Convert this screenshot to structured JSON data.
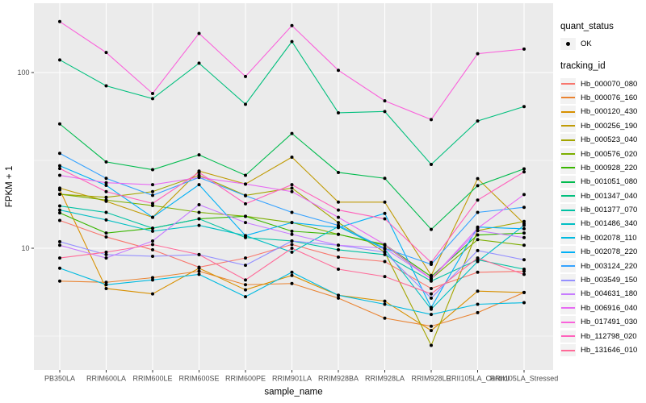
{
  "figure": {
    "panel": {
      "bg": "#EBEBEB",
      "grid_color": "#FFFFFF",
      "tick_color": "#333333",
      "tick_label_color": "#4D4D4D",
      "point_color": "#000000",
      "legend_key_bg": "#F2F2F2"
    },
    "legend": {
      "quant_status_title": "quant_status",
      "ok_label": "OK",
      "tracking_id_title": "tracking_id"
    }
  },
  "chart_data": {
    "type": "line",
    "title": "",
    "xlabel": "sample_name",
    "ylabel": "FPKM + 1",
    "y_scale": "log10",
    "ylim": [
      2,
      250
    ],
    "y_major_ticks": [
      100,
      10
    ],
    "y_tick_labels": [
      "100",
      "10"
    ],
    "y_minor_gridlines": [
      31.62,
      3.162
    ],
    "grid": true,
    "legend_position": "right",
    "point_marker": "black-point",
    "x": [
      "PB350LA",
      "RRIM600LA",
      "RRIM600LE",
      "RRIM600SE",
      "RRIM600PE",
      "RRIM901LA",
      "RRIM928BA",
      "RRIM928LA",
      "RRIM928LE",
      "RRII105LA_Control",
      "RRII105LA_Stressed"
    ],
    "quant_status": [
      "OK"
    ],
    "series": [
      {
        "name": "Hb_000070_080",
        "color": "#F8766D",
        "values": [
          14.4,
          11.6,
          9.8,
          7.8,
          8.8,
          10.5,
          8.9,
          8.4,
          5.9,
          7.3,
          7.4
        ]
      },
      {
        "name": "Hb_000076_160",
        "color": "#EA8331",
        "values": [
          6.5,
          6.4,
          6.8,
          7.4,
          6.2,
          6.3,
          5.2,
          4.0,
          3.6,
          4.3,
          5.6
        ]
      },
      {
        "name": "Hb_000120_430",
        "color": "#D89000",
        "values": [
          21.5,
          5.9,
          5.5,
          7.7,
          5.8,
          7.0,
          5.4,
          5.0,
          3.4,
          5.7,
          5.6
        ]
      },
      {
        "name": "Hb_000256_190",
        "color": "#C09B06",
        "values": [
          22.0,
          18.5,
          15.0,
          27.5,
          23.2,
          33.0,
          18.3,
          18.3,
          7.0,
          24.9,
          13.8
        ]
      },
      {
        "name": "Hb_000523_040",
        "color": "#A3A500",
        "values": [
          20.3,
          19.5,
          21.0,
          26.0,
          20.0,
          22.0,
          14.0,
          9.5,
          2.8,
          12.6,
          14.2
        ]
      },
      {
        "name": "Hb_000576_020",
        "color": "#7CAE00",
        "values": [
          20.3,
          18.8,
          17.5,
          16.0,
          15.2,
          14.0,
          12.0,
          10.4,
          6.7,
          11.2,
          10.4
        ]
      },
      {
        "name": "Hb_000928_220",
        "color": "#39B600",
        "values": [
          15.9,
          12.2,
          13.0,
          14.7,
          15.2,
          12.5,
          12.0,
          10.5,
          6.9,
          11.9,
          12.2
        ]
      },
      {
        "name": "Hb_001051_080",
        "color": "#00BB4E",
        "values": [
          51,
          31,
          28,
          34,
          26,
          45,
          27,
          25,
          12.8,
          22.7,
          28.3
        ]
      },
      {
        "name": "Hb_001347_040",
        "color": "#00BF7D",
        "values": [
          118,
          84,
          71,
          113,
          66,
          150,
          59,
          60,
          30,
          53,
          64
        ]
      },
      {
        "name": "Hb_001377_070",
        "color": "#00C1A3",
        "values": [
          17.4,
          16.0,
          13.0,
          14.7,
          11.5,
          11.0,
          9.8,
          9.2,
          6.5,
          8.6,
          7.6
        ]
      },
      {
        "name": "Hb_001486_340",
        "color": "#00BFC4",
        "values": [
          16.5,
          14.5,
          12.5,
          13.5,
          11.8,
          9.5,
          13.3,
          9.9,
          4.5,
          8.4,
          13.5
        ]
      },
      {
        "name": "Hb_002078_110",
        "color": "#00BAE0",
        "values": [
          7.7,
          6.2,
          6.6,
          7.1,
          5.3,
          7.3,
          5.4,
          4.8,
          4.2,
          4.8,
          4.9
        ]
      },
      {
        "name": "Hb_002078_220",
        "color": "#00B0F6",
        "values": [
          29.5,
          22.8,
          15.0,
          23.0,
          11.8,
          14.0,
          13.1,
          15.8,
          4.6,
          13.2,
          12.9
        ]
      },
      {
        "name": "Hb_003124_220",
        "color": "#35A2FF",
        "values": [
          34.7,
          25.0,
          20.0,
          25.3,
          19.9,
          16.0,
          13.5,
          10.0,
          8.1,
          16.0,
          17.1
        ]
      },
      {
        "name": "Hb_003549_150",
        "color": "#9590FF",
        "values": [
          10.9,
          9.2,
          9.0,
          9.2,
          8.0,
          11.0,
          10.4,
          9.5,
          5.2,
          9.7,
          8.6
        ]
      },
      {
        "name": "Hb_004631_180",
        "color": "#C77CFF",
        "values": [
          10.4,
          8.8,
          11.0,
          17.7,
          14.0,
          12.0,
          10.4,
          10.0,
          6.7,
          12.6,
          11.5
        ]
      },
      {
        "name": "Hb_006916_040",
        "color": "#E76BF3",
        "values": [
          26.0,
          23.6,
          23.0,
          25.3,
          23.2,
          21.0,
          15.0,
          10.5,
          6.7,
          13.0,
          20.2
        ]
      },
      {
        "name": "Hb_017491_030",
        "color": "#FA62DB",
        "values": [
          195,
          130,
          76,
          167,
          95,
          185,
          103,
          69,
          54,
          128,
          136
        ]
      },
      {
        "name": "Hb_112798_020",
        "color": "#FF62BC",
        "values": [
          28.4,
          21.0,
          18.0,
          27.0,
          17.9,
          23.0,
          16.5,
          14.7,
          8.3,
          18.8,
          27.2
        ]
      },
      {
        "name": "Hb_131646_010",
        "color": "#FF6A98",
        "values": [
          8.8,
          9.5,
          10.5,
          9.2,
          6.6,
          10.0,
          7.6,
          6.9,
          5.5,
          8.8,
          7.1
        ]
      }
    ]
  }
}
